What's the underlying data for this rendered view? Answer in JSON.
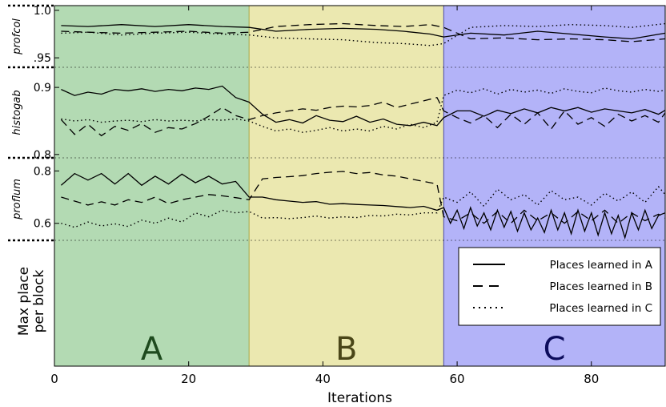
{
  "chart_data": {
    "type": "line",
    "xlabel": "Iterations",
    "ylabel": "Max place per block",
    "xlim": [
      0,
      91
    ],
    "x_ticks": [
      "0",
      "20",
      "40",
      "60",
      "80"
    ],
    "regions": [
      {
        "label": "A",
        "x_start": 0,
        "x_end": 29,
        "color": "#b3dab3",
        "text_color": "#1e4a1e"
      },
      {
        "label": "B",
        "x_start": 29,
        "x_end": 58,
        "color": "#ebe8b0",
        "text_color": "#4a4618"
      },
      {
        "label": "C",
        "x_start": 58,
        "x_end": 91,
        "color": "#b3b3f8",
        "text_color": "#0c0c5c"
      }
    ],
    "series_names": [
      "Places learned in A",
      "Places learned in B",
      "Places learned in C"
    ],
    "series_styles": [
      "solid",
      "dashed",
      "dotted"
    ],
    "panels": [
      {
        "name": "profcol",
        "ylim": [
          0.94,
          1.005
        ],
        "y_ticks": [
          {
            "value": 1.0,
            "label": "1.0"
          },
          {
            "value": 0.95,
            "label": ".95"
          }
        ],
        "series": [
          {
            "name": "Places learned in A",
            "style": "solid",
            "x": [
              1,
              5,
              10,
              15,
              20,
              25,
              29,
              33,
              38,
              43,
              48,
              52,
              56,
              58,
              62,
              67,
              72,
              77,
              82,
              86,
              91
            ],
            "y": [
              0.984,
              0.983,
              0.985,
              0.983,
              0.985,
              0.983,
              0.982,
              0.978,
              0.98,
              0.981,
              0.98,
              0.978,
              0.975,
              0.972,
              0.976,
              0.974,
              0.978,
              0.975,
              0.972,
              0.97,
              0.976
            ]
          },
          {
            "name": "Places learned in B",
            "style": "dashed",
            "x": [
              1,
              5,
              10,
              15,
              20,
              25,
              29,
              33,
              38,
              43,
              48,
              52,
              56,
              58,
              62,
              67,
              72,
              77,
              82,
              86,
              91
            ],
            "y": [
              0.978,
              0.977,
              0.976,
              0.977,
              0.978,
              0.976,
              0.977,
              0.983,
              0.985,
              0.986,
              0.984,
              0.983,
              0.985,
              0.982,
              0.97,
              0.971,
              0.969,
              0.97,
              0.969,
              0.967,
              0.97
            ]
          },
          {
            "name": "Places learned in C",
            "style": "dotted",
            "x": [
              1,
              5,
              10,
              15,
              20,
              25,
              29,
              33,
              38,
              43,
              48,
              52,
              56,
              58,
              62,
              67,
              72,
              77,
              82,
              86,
              91
            ],
            "y": [
              0.976,
              0.977,
              0.974,
              0.976,
              0.977,
              0.975,
              0.974,
              0.971,
              0.97,
              0.969,
              0.966,
              0.965,
              0.963,
              0.965,
              0.982,
              0.984,
              0.983,
              0.985,
              0.984,
              0.982,
              0.986
            ]
          }
        ]
      },
      {
        "name": "histogab",
        "ylim": [
          0.795,
          0.93
        ],
        "y_ticks": [
          {
            "value": 0.9,
            "label": "0.9"
          },
          {
            "value": 0.8,
            "label": "0.8"
          }
        ],
        "series": [
          {
            "name": "Places learned in A",
            "style": "solid",
            "x": [
              1,
              3,
              5,
              7,
              9,
              11,
              13,
              15,
              17,
              19,
              21,
              23,
              25,
              27,
              29,
              31,
              33,
              35,
              37,
              39,
              41,
              43,
              45,
              47,
              49,
              51,
              53,
              55,
              57,
              58,
              60,
              62,
              64,
              66,
              68,
              70,
              72,
              74,
              76,
              78,
              80,
              82,
              84,
              86,
              88,
              90,
              91
            ],
            "y": [
              0.897,
              0.888,
              0.893,
              0.89,
              0.897,
              0.895,
              0.898,
              0.894,
              0.897,
              0.895,
              0.899,
              0.897,
              0.902,
              0.885,
              0.878,
              0.86,
              0.848,
              0.852,
              0.847,
              0.858,
              0.851,
              0.849,
              0.857,
              0.848,
              0.853,
              0.845,
              0.843,
              0.848,
              0.843,
              0.855,
              0.865,
              0.865,
              0.857,
              0.866,
              0.861,
              0.868,
              0.862,
              0.87,
              0.865,
              0.87,
              0.863,
              0.868,
              0.865,
              0.862,
              0.867,
              0.86,
              0.866
            ]
          },
          {
            "name": "Places learned in B",
            "style": "dashed",
            "x": [
              1,
              3,
              5,
              7,
              9,
              11,
              13,
              15,
              17,
              19,
              21,
              23,
              25,
              27,
              29,
              31,
              33,
              35,
              37,
              39,
              41,
              43,
              45,
              47,
              49,
              51,
              53,
              55,
              57,
              58,
              60,
              62,
              64,
              66,
              68,
              70,
              72,
              74,
              76,
              78,
              80,
              82,
              84,
              86,
              88,
              90,
              91
            ],
            "y": [
              0.852,
              0.83,
              0.845,
              0.828,
              0.842,
              0.836,
              0.846,
              0.833,
              0.84,
              0.838,
              0.846,
              0.857,
              0.87,
              0.858,
              0.852,
              0.858,
              0.862,
              0.865,
              0.868,
              0.866,
              0.87,
              0.872,
              0.871,
              0.873,
              0.878,
              0.87,
              0.875,
              0.88,
              0.885,
              0.865,
              0.855,
              0.847,
              0.858,
              0.84,
              0.86,
              0.845,
              0.862,
              0.838,
              0.865,
              0.845,
              0.855,
              0.842,
              0.86,
              0.85,
              0.858,
              0.848,
              0.862
            ]
          },
          {
            "name": "Places learned in C",
            "style": "dotted",
            "x": [
              1,
              3,
              5,
              7,
              9,
              11,
              13,
              15,
              17,
              19,
              21,
              23,
              25,
              27,
              29,
              31,
              33,
              35,
              37,
              39,
              41,
              43,
              45,
              47,
              49,
              51,
              53,
              55,
              57,
              58,
              60,
              62,
              64,
              66,
              68,
              70,
              72,
              74,
              76,
              78,
              80,
              82,
              84,
              86,
              88,
              90,
              91
            ],
            "y": [
              0.853,
              0.85,
              0.852,
              0.848,
              0.85,
              0.851,
              0.849,
              0.852,
              0.85,
              0.851,
              0.85,
              0.852,
              0.851,
              0.853,
              0.85,
              0.842,
              0.835,
              0.838,
              0.833,
              0.836,
              0.84,
              0.835,
              0.838,
              0.835,
              0.842,
              0.838,
              0.845,
              0.84,
              0.848,
              0.888,
              0.896,
              0.892,
              0.898,
              0.89,
              0.897,
              0.893,
              0.896,
              0.891,
              0.898,
              0.894,
              0.892,
              0.899,
              0.895,
              0.893,
              0.897,
              0.894,
              0.896
            ]
          }
        ]
      },
      {
        "name": "proflum",
        "ylim": [
          0.535,
          0.85
        ],
        "y_ticks": [
          {
            "value": 0.8,
            "label": "0.8"
          },
          {
            "value": 0.6,
            "label": "0.6"
          }
        ],
        "series": [
          {
            "name": "Places learned in A",
            "style": "solid",
            "x": [
              1,
              3,
              5,
              7,
              9,
              11,
              13,
              15,
              17,
              19,
              21,
              23,
              25,
              27,
              29,
              31,
              33,
              35,
              37,
              39,
              41,
              43,
              45,
              47,
              49,
              51,
              53,
              55,
              57,
              58,
              59,
              60,
              61,
              62,
              63,
              64,
              65,
              66,
              67,
              68,
              69,
              70,
              71,
              72,
              73,
              74,
              75,
              76,
              77,
              78,
              79,
              80,
              81,
              82,
              83,
              84,
              85,
              86,
              87,
              88,
              89,
              90,
              91
            ],
            "y": [
              0.745,
              0.79,
              0.765,
              0.79,
              0.75,
              0.79,
              0.745,
              0.78,
              0.75,
              0.788,
              0.755,
              0.78,
              0.75,
              0.76,
              0.7,
              0.7,
              0.69,
              0.685,
              0.68,
              0.683,
              0.673,
              0.675,
              0.672,
              0.67,
              0.668,
              0.664,
              0.66,
              0.665,
              0.65,
              0.66,
              0.6,
              0.65,
              0.58,
              0.66,
              0.59,
              0.64,
              0.575,
              0.65,
              0.585,
              0.645,
              0.57,
              0.64,
              0.575,
              0.62,
              0.565,
              0.65,
              0.575,
              0.64,
              0.56,
              0.65,
              0.57,
              0.64,
              0.555,
              0.64,
              0.56,
              0.63,
              0.545,
              0.64,
              0.575,
              0.65,
              0.58,
              0.63,
              0.64
            ]
          },
          {
            "name": "Places learned in B",
            "style": "dashed",
            "x": [
              1,
              3,
              5,
              7,
              9,
              11,
              13,
              15,
              17,
              19,
              21,
              23,
              25,
              27,
              29,
              31,
              33,
              35,
              37,
              39,
              41,
              43,
              45,
              47,
              49,
              51,
              53,
              55,
              57,
              58,
              60,
              62,
              64,
              66,
              68,
              70,
              72,
              74,
              76,
              78,
              80,
              82,
              84,
              86,
              88,
              90,
              91
            ],
            "y": [
              0.7,
              0.685,
              0.67,
              0.682,
              0.67,
              0.69,
              0.68,
              0.7,
              0.675,
              0.69,
              0.7,
              0.71,
              0.705,
              0.698,
              0.69,
              0.77,
              0.775,
              0.778,
              0.782,
              0.79,
              0.795,
              0.798,
              0.79,
              0.794,
              0.785,
              0.78,
              0.77,
              0.76,
              0.75,
              0.625,
              0.61,
              0.64,
              0.6,
              0.645,
              0.6,
              0.65,
              0.61,
              0.64,
              0.6,
              0.645,
              0.61,
              0.65,
              0.6,
              0.64,
              0.61,
              0.635,
              0.62
            ]
          },
          {
            "name": "Places learned in C",
            "style": "dotted",
            "x": [
              1,
              3,
              5,
              7,
              9,
              11,
              13,
              15,
              17,
              19,
              21,
              23,
              25,
              27,
              29,
              31,
              33,
              35,
              37,
              39,
              41,
              43,
              45,
              47,
              49,
              51,
              53,
              55,
              57,
              58,
              60,
              62,
              64,
              66,
              68,
              70,
              72,
              74,
              76,
              78,
              80,
              82,
              84,
              86,
              88,
              90,
              91
            ],
            "y": [
              0.6,
              0.585,
              0.605,
              0.59,
              0.598,
              0.588,
              0.612,
              0.6,
              0.62,
              0.605,
              0.64,
              0.625,
              0.65,
              0.64,
              0.645,
              0.62,
              0.622,
              0.618,
              0.622,
              0.628,
              0.62,
              0.625,
              0.622,
              0.63,
              0.628,
              0.635,
              0.632,
              0.64,
              0.64,
              0.7,
              0.68,
              0.72,
              0.665,
              0.73,
              0.69,
              0.71,
              0.67,
              0.725,
              0.69,
              0.7,
              0.67,
              0.715,
              0.685,
              0.72,
              0.68,
              0.74,
              0.71
            ]
          }
        ]
      }
    ],
    "legend": {
      "position": "bottom-right inside region C"
    }
  }
}
